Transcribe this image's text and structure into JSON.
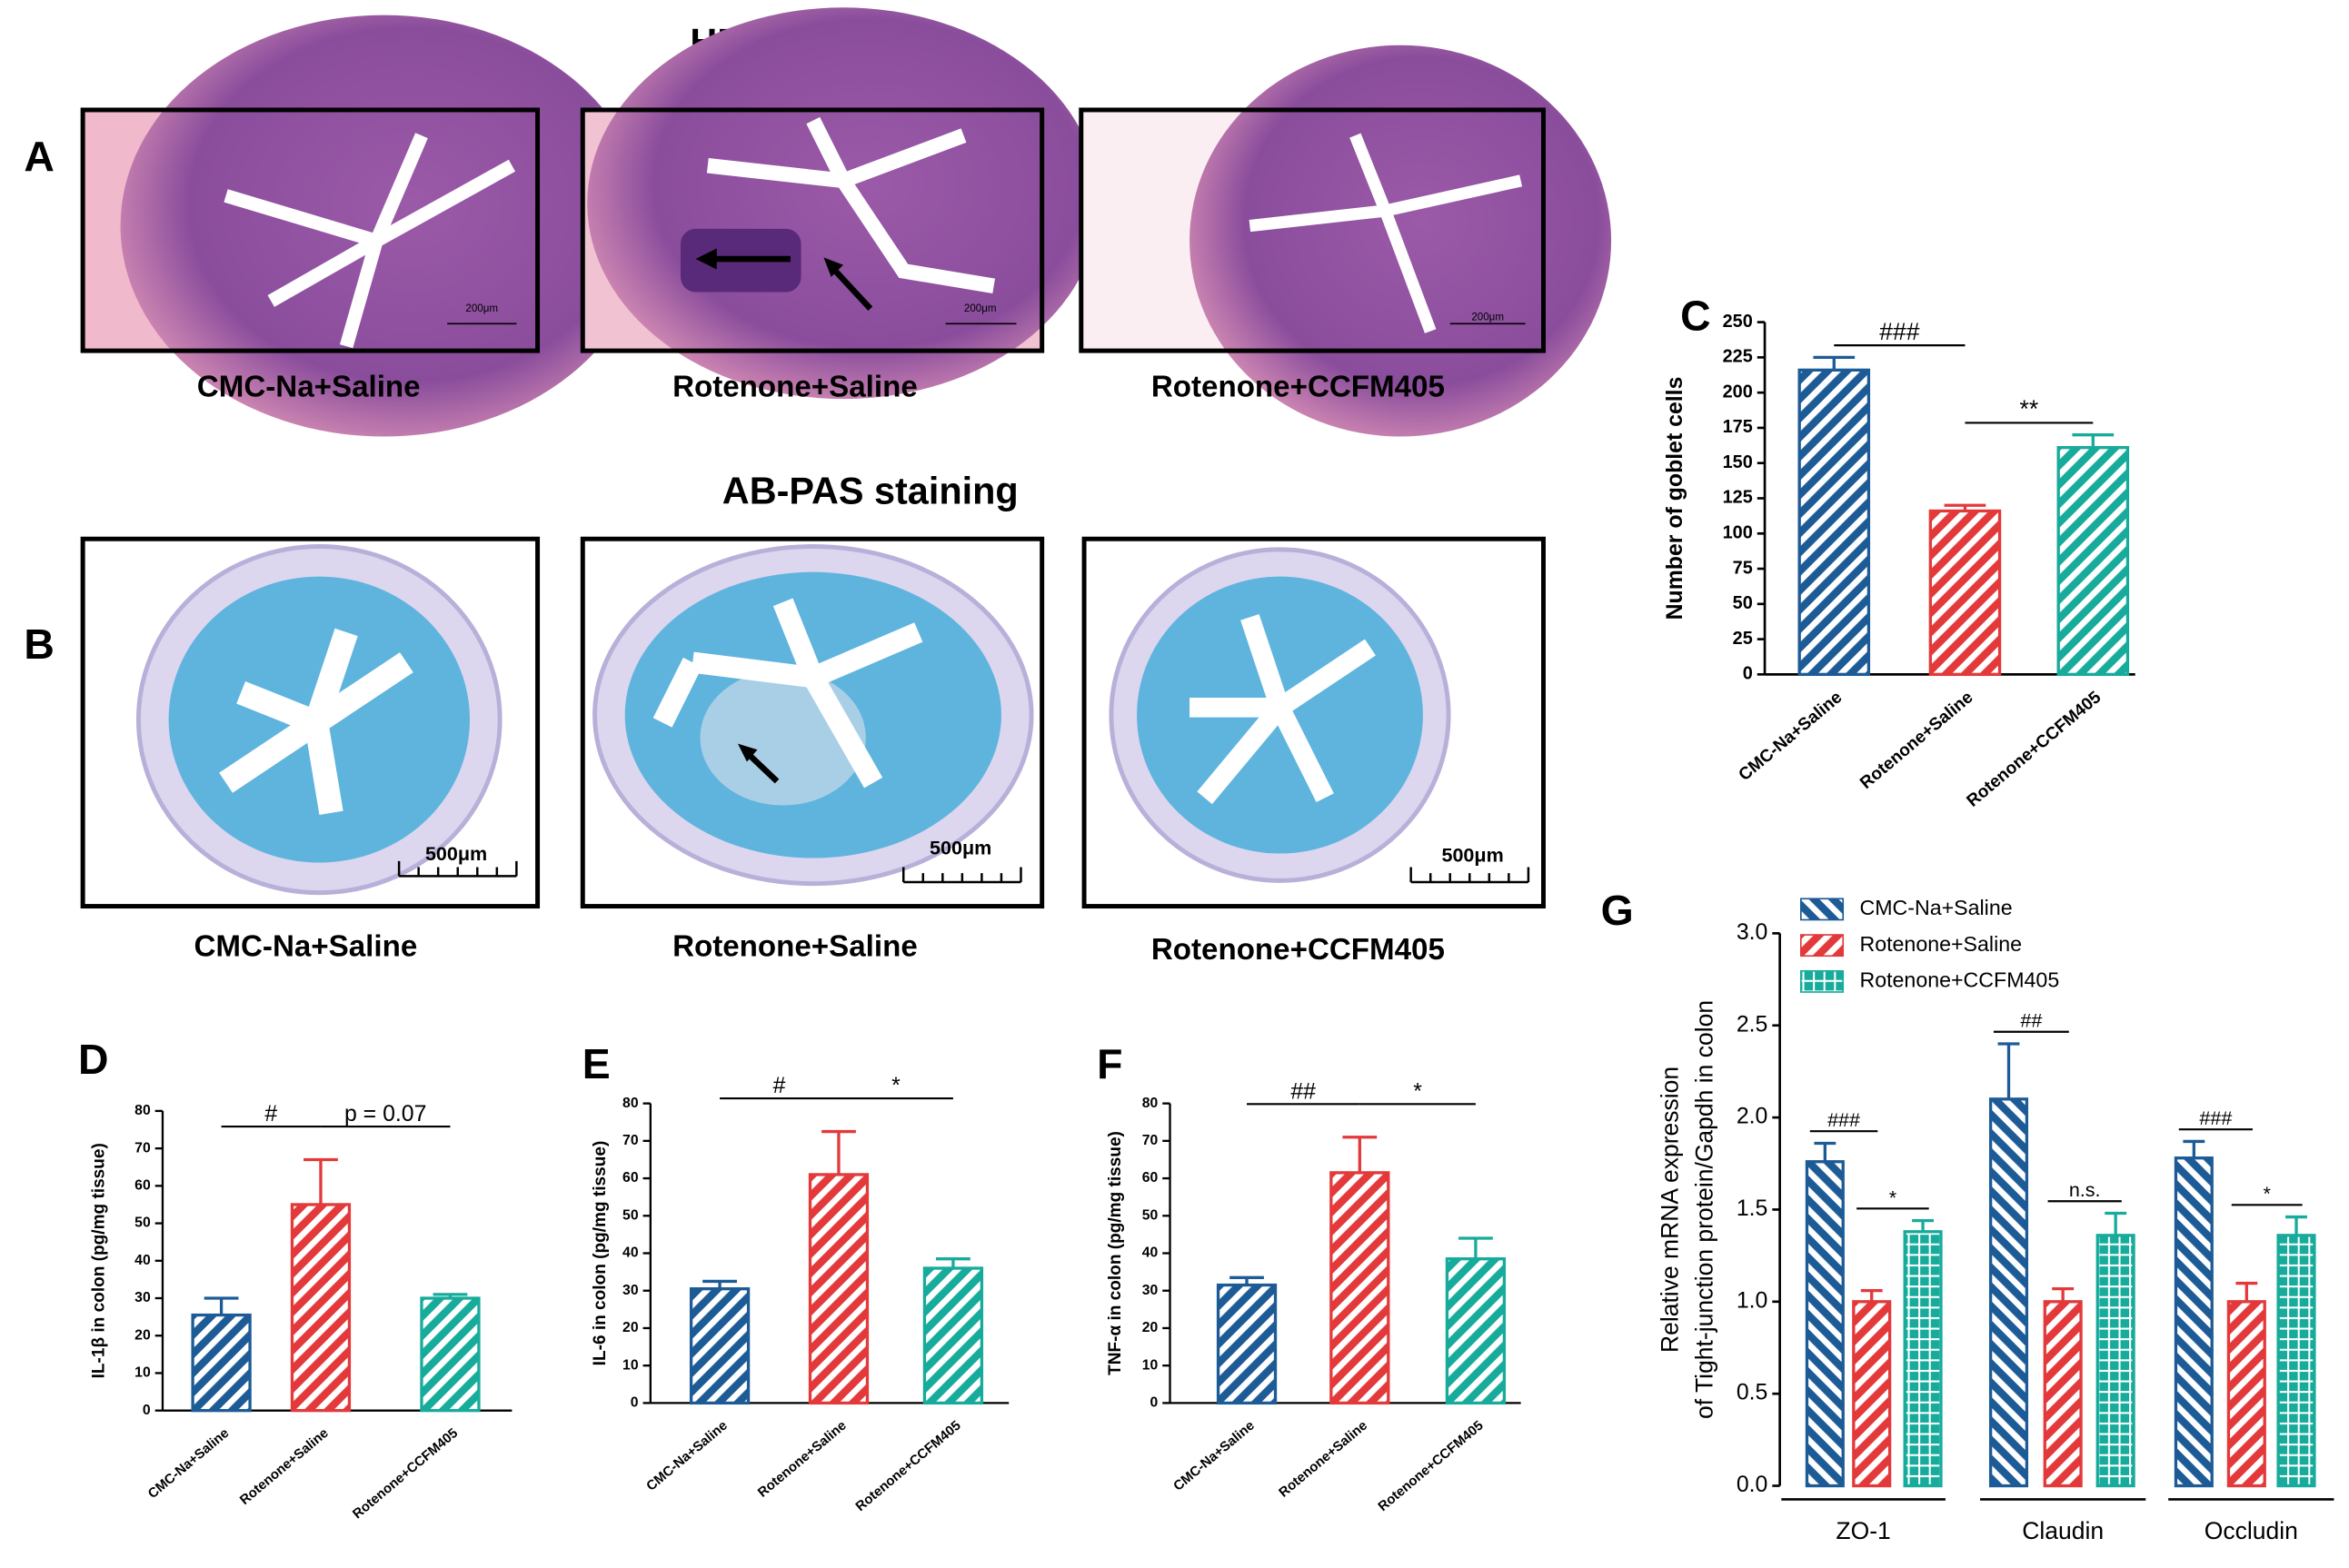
{
  "headings": {
    "he": "HE staining",
    "abpas": "AB-PAS staining"
  },
  "panel_labels": [
    "A",
    "B",
    "C",
    "D",
    "E",
    "F",
    "G"
  ],
  "he_images": [
    {
      "caption": "CMC-Na+Saline",
      "scale": "200μm"
    },
    {
      "caption": "Rotenone+Saline",
      "scale": "200μm"
    },
    {
      "caption": "Rotenone+CCFM405",
      "scale": "200μm"
    }
  ],
  "abpas_images": [
    {
      "caption": "CMC-Na+Saline",
      "scale": "500μm"
    },
    {
      "caption": "Rotenone+Saline",
      "scale": "500μm"
    },
    {
      "caption": "Rotenone+CCFM405",
      "scale": "500μm"
    }
  ],
  "chart_data": [
    {
      "type": "bar",
      "ylabel": "Number of goblet cells",
      "categories": [
        "CMC-Na+Saline",
        "Rotenone+Saline",
        "Rotenone+CCFM405"
      ],
      "values": [
        216,
        116,
        161
      ],
      "errors": [
        9,
        4,
        9
      ],
      "colors": [
        "#1d5b96",
        "#e3393a",
        "#17ab9b"
      ],
      "hatch": "diagonal-up",
      "ylim": [
        0,
        250
      ],
      "yticks": [
        0,
        25,
        50,
        75,
        100,
        125,
        150,
        175,
        200,
        225,
        250
      ],
      "annotations": [
        {
          "text": "###",
          "bars": [
            0,
            1
          ]
        },
        {
          "text": "**",
          "bars": [
            1,
            2
          ]
        }
      ]
    },
    {
      "type": "bar",
      "ylabel": "IL-1β in colon (pg/mg tissue)",
      "categories": [
        "CMC-Na+Saline",
        "Rotenone+Saline",
        "Rotenone+CCFM405"
      ],
      "values": [
        25.5,
        55,
        30
      ],
      "errors": [
        4.5,
        12,
        1
      ],
      "colors": [
        "#1d5b96",
        "#e3393a",
        "#17ab9b"
      ],
      "hatch": "diagonal-up",
      "ylim": [
        0,
        80
      ],
      "yticks": [
        0,
        10,
        20,
        30,
        40,
        50,
        60,
        70,
        80
      ],
      "annotations": [
        {
          "text": "#",
          "bars": [
            0,
            1
          ]
        },
        {
          "text": "p = 0.07",
          "bars": [
            1,
            2
          ]
        }
      ]
    },
    {
      "type": "bar",
      "ylabel": "IL-6 in colon (pg/mg tissue)",
      "categories": [
        "CMC-Na+Saline",
        "Rotenone+Saline",
        "Rotenone+CCFM405"
      ],
      "values": [
        30.5,
        61,
        36
      ],
      "errors": [
        2,
        11.5,
        2.5
      ],
      "colors": [
        "#1d5b96",
        "#e3393a",
        "#17ab9b"
      ],
      "hatch": "diagonal-up",
      "ylim": [
        0,
        80
      ],
      "yticks": [
        0,
        10,
        20,
        30,
        40,
        50,
        60,
        70,
        80
      ],
      "annotations": [
        {
          "text": "#",
          "bars": [
            0,
            1
          ]
        },
        {
          "text": "*",
          "bars": [
            1,
            2
          ]
        }
      ]
    },
    {
      "type": "bar",
      "ylabel": "TNF-α in colon (pg/mg tissue)",
      "categories": [
        "CMC-Na+Saline",
        "Rotenone+Saline",
        "Rotenone+CCFM405"
      ],
      "values": [
        31.5,
        61.5,
        38.5
      ],
      "errors": [
        2,
        9.5,
        5.5
      ],
      "colors": [
        "#1d5b96",
        "#e3393a",
        "#17ab9b"
      ],
      "hatch": "diagonal-up",
      "ylim": [
        0,
        80
      ],
      "yticks": [
        0,
        10,
        20,
        30,
        40,
        50,
        60,
        70,
        80
      ],
      "annotations": [
        {
          "text": "##",
          "bars": [
            0,
            1
          ]
        },
        {
          "text": "*",
          "bars": [
            1,
            2
          ]
        }
      ]
    },
    {
      "type": "grouped_bar",
      "ylabel": [
        "Relative mRNA expression",
        "of Tight-junction protein/Gapdh in colon"
      ],
      "categories": [
        "ZO-1",
        "Claudin",
        "Occludin"
      ],
      "series": [
        {
          "name": "CMC-Na+Saline",
          "color": "#1d5b96",
          "hatch": "diagonal-down",
          "values": [
            1.76,
            2.1,
            1.78
          ],
          "errors": [
            0.1,
            0.3,
            0.09
          ]
        },
        {
          "name": "Rotenone+Saline",
          "color": "#e3393a",
          "hatch": "diagonal-up",
          "values": [
            1.0,
            1.0,
            1.0
          ],
          "errors": [
            0.06,
            0.07,
            0.1
          ]
        },
        {
          "name": "Rotenone+CCFM405",
          "color": "#17ab9b",
          "hatch": "grid",
          "values": [
            1.38,
            1.36,
            1.36
          ],
          "errors": [
            0.06,
            0.12,
            0.1
          ]
        }
      ],
      "ylim": [
        0,
        3
      ],
      "yticks": [
        {
          "value": 0,
          "label": "0.0"
        },
        {
          "value": 0.5,
          "label": "0.5"
        },
        {
          "value": 1,
          "label": "1.0"
        },
        {
          "value": 1.5,
          "label": "1.5"
        },
        {
          "value": 2,
          "label": "2.0"
        },
        {
          "value": 2.5,
          "label": "2.5"
        },
        {
          "value": 3,
          "label": "3.0"
        }
      ],
      "legend": "upper left",
      "annotations": [
        {
          "text": "###",
          "group": 0,
          "series": [
            0,
            1
          ]
        },
        {
          "text": "*",
          "group": 0,
          "series": [
            1,
            2
          ]
        },
        {
          "text": "##",
          "group": 1,
          "series": [
            0,
            1
          ]
        },
        {
          "text": "n.s.",
          "group": 1,
          "series": [
            1,
            2
          ]
        },
        {
          "text": "###",
          "group": 2,
          "series": [
            0,
            1
          ]
        },
        {
          "text": "*",
          "group": 2,
          "series": [
            1,
            2
          ]
        }
      ]
    }
  ]
}
